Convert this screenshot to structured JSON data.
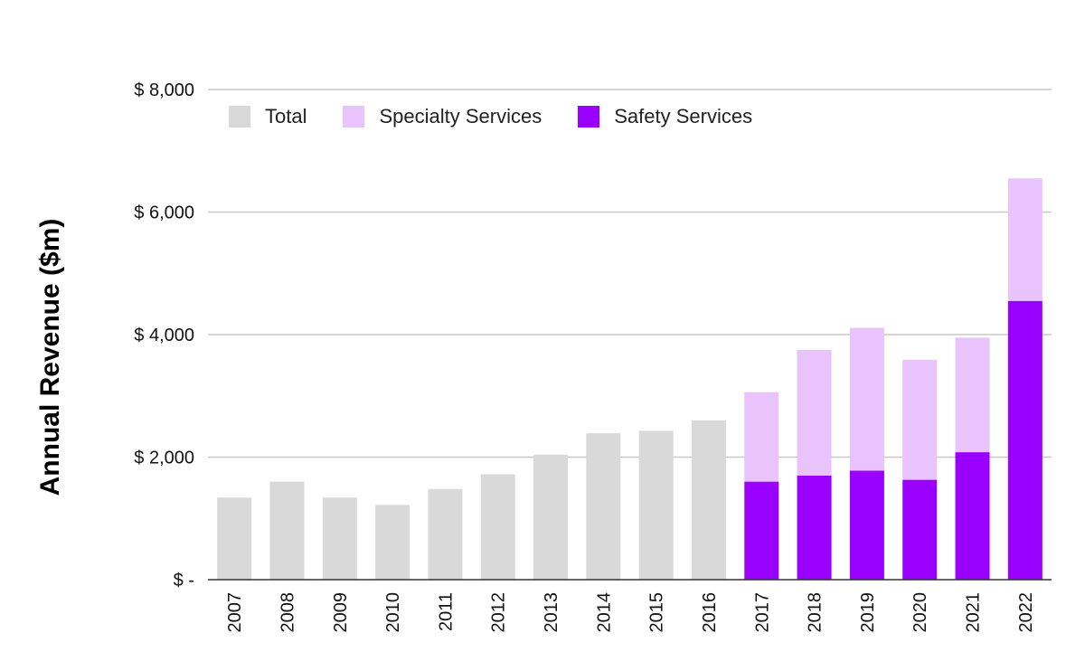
{
  "chart_data": {
    "type": "bar",
    "stacked": true,
    "title": "",
    "xlabel": "",
    "ylabel": "Annual Revenue ($m)",
    "ylim": [
      0,
      8000
    ],
    "yticks": [
      {
        "value": 0,
        "label": "$ -"
      },
      {
        "value": 2000,
        "label": "$ 2,000"
      },
      {
        "value": 4000,
        "label": "$ 4,000"
      },
      {
        "value": 6000,
        "label": "$ 6,000"
      },
      {
        "value": 8000,
        "label": "$ 8,000"
      }
    ],
    "grid": true,
    "legend_position": "top-left",
    "categories": [
      "2007",
      "2008",
      "2009",
      "2010",
      "2011",
      "2012",
      "2013",
      "2014",
      "2015",
      "2016",
      "2017",
      "2018",
      "2019",
      "2020",
      "2021",
      "2022"
    ],
    "series": [
      {
        "name": "Total",
        "color": "#d9d9d9",
        "values": [
          1340,
          1600,
          1340,
          1220,
          1480,
          1720,
          2040,
          2390,
          2430,
          2600,
          null,
          null,
          null,
          null,
          null,
          null
        ]
      },
      {
        "name": "Safety Services",
        "color": "#9900ff",
        "values": [
          null,
          null,
          null,
          null,
          null,
          null,
          null,
          null,
          null,
          null,
          1600,
          1700,
          1780,
          1630,
          2080,
          4550
        ]
      },
      {
        "name": "Specialty Services",
        "color": "#e8c3fc",
        "values": [
          null,
          null,
          null,
          null,
          null,
          null,
          null,
          null,
          null,
          null,
          1460,
          2050,
          2330,
          1960,
          1870,
          2000
        ]
      }
    ]
  },
  "legend": {
    "items": [
      {
        "label": "Total",
        "color": "#d9d9d9"
      },
      {
        "label": "Specialty Services",
        "color": "#e8c3fc"
      },
      {
        "label": "Safety Services",
        "color": "#9900ff"
      }
    ]
  }
}
